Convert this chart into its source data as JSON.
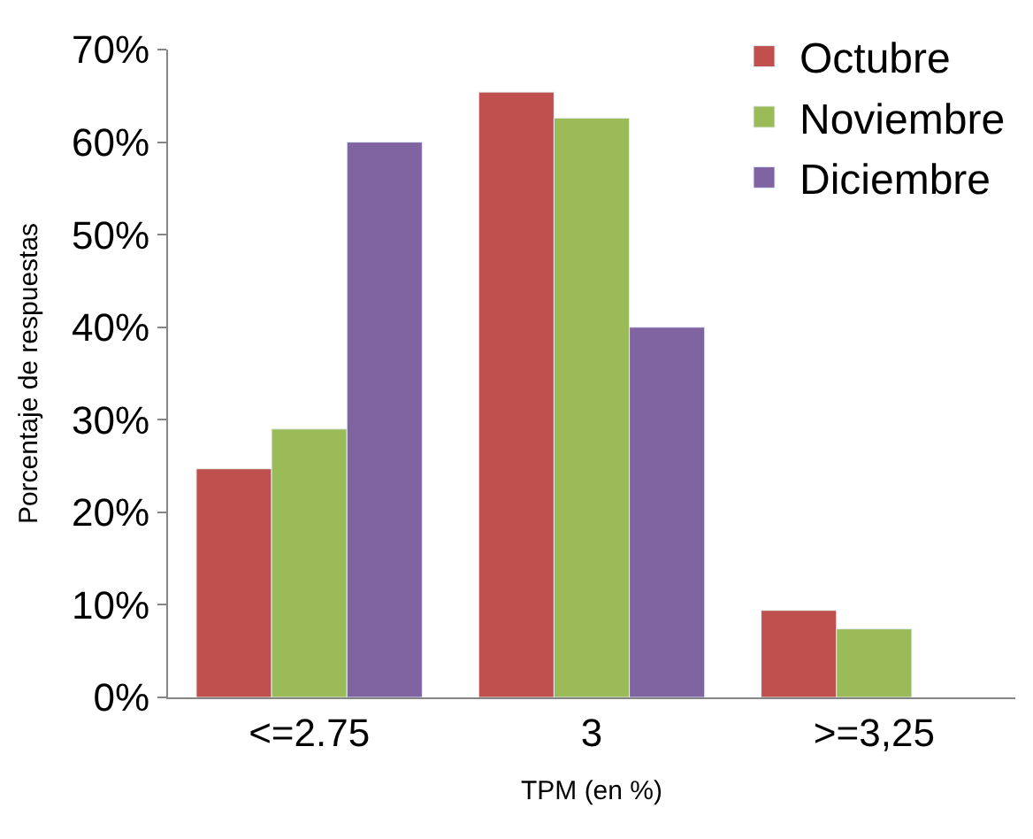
{
  "chart_data": {
    "type": "bar",
    "xlabel": "TPM (en %)",
    "ylabel": "Porcentaje de respuestas",
    "categories": [
      "<=2.75",
      "3",
      ">=3,25"
    ],
    "series": [
      {
        "name": "Octubre",
        "color": "#c0504d",
        "values": [
          24.7,
          65.4,
          9.4
        ]
      },
      {
        "name": "Noviembre",
        "color": "#9bbb59",
        "values": [
          29,
          62.6,
          7.4
        ]
      },
      {
        "name": "Diciembre",
        "color": "#8064a2",
        "values": [
          60,
          40,
          null
        ]
      }
    ],
    "ylim": [
      0,
      70
    ],
    "yticks": [
      {
        "value": 0,
        "label": "0%"
      },
      {
        "value": 10,
        "label": "10%"
      },
      {
        "value": 20,
        "label": "20%"
      },
      {
        "value": 30,
        "label": "30%"
      },
      {
        "value": 40,
        "label": "40%"
      },
      {
        "value": 50,
        "label": "50%"
      },
      {
        "value": 60,
        "label": "60%"
      },
      {
        "value": 70,
        "label": "70%"
      }
    ],
    "legend": "top right"
  }
}
